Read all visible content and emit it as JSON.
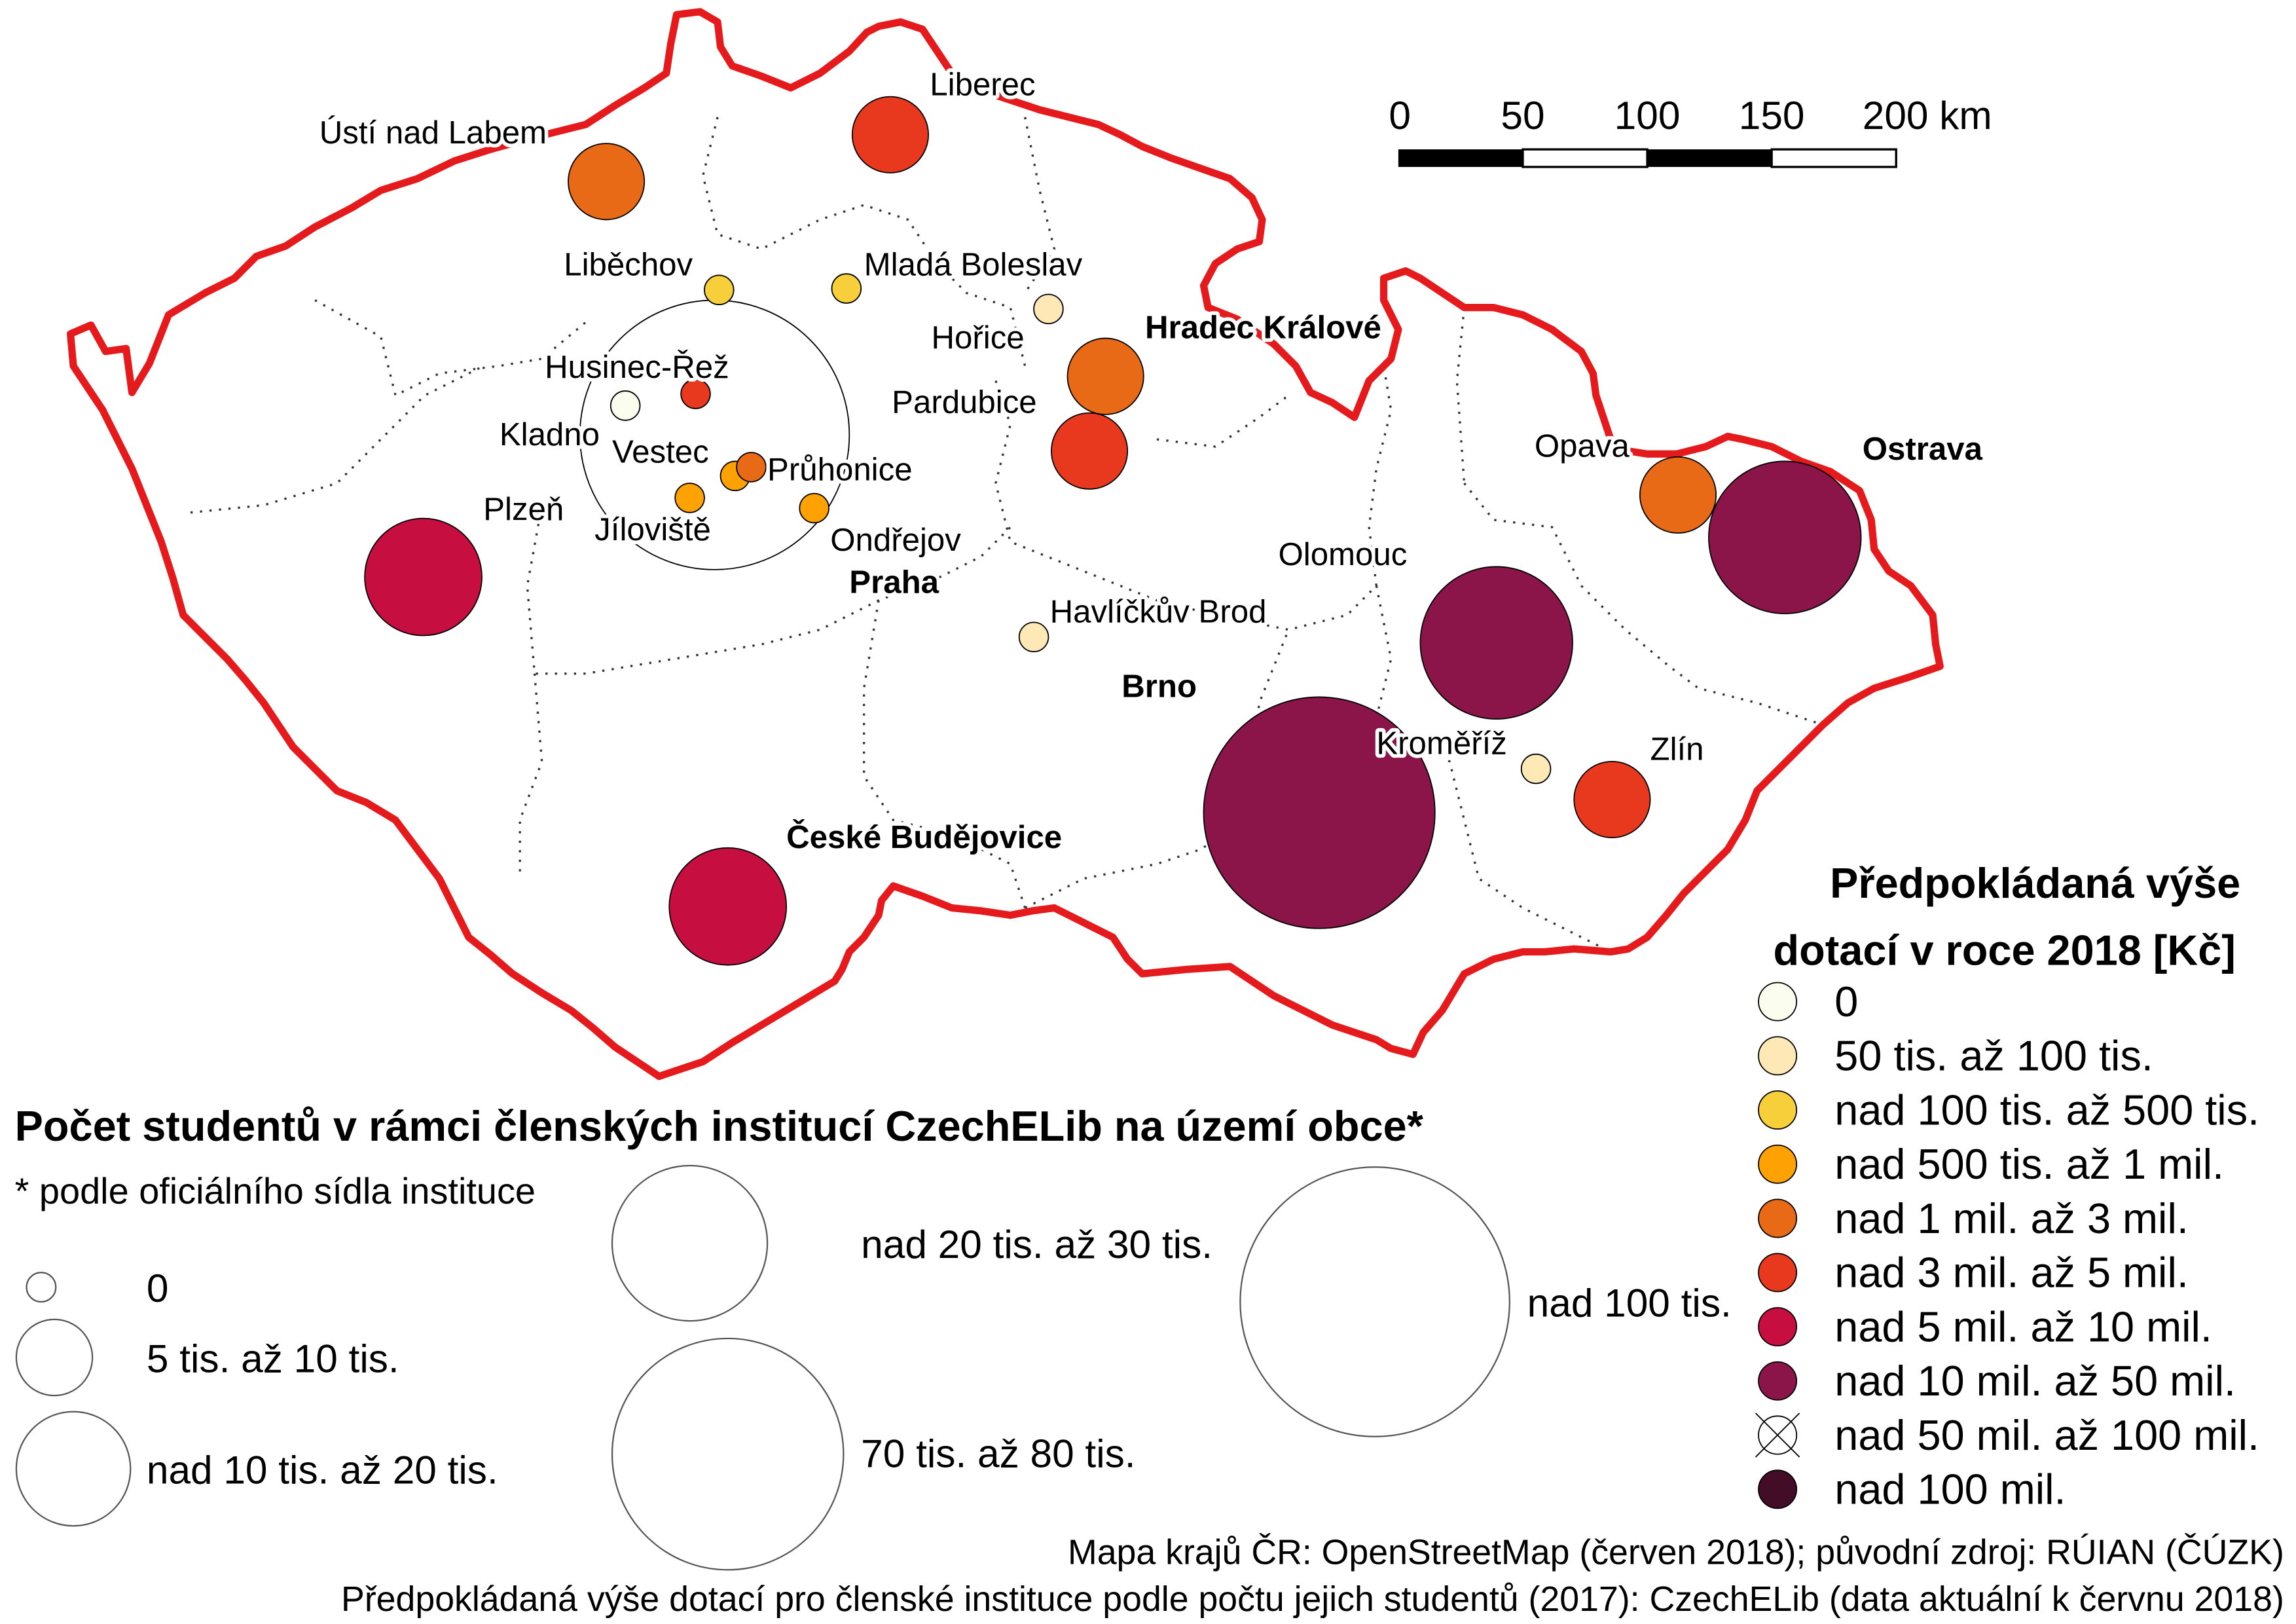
{
  "scale_bar": {
    "ticks": [
      "0",
      "50",
      "100",
      "150",
      "200 km"
    ]
  },
  "cities": [
    {
      "name": "Praha",
      "bold": true,
      "funding": 8
    },
    {
      "name": "Ústí nad Labem",
      "bold": false,
      "funding": 4
    },
    {
      "name": "Liberec",
      "bold": false,
      "funding": 5
    },
    {
      "name": "Liběchov",
      "bold": false,
      "funding": 2
    },
    {
      "name": "Mladá Boleslav",
      "bold": false,
      "funding": 2
    },
    {
      "name": "Hořice",
      "bold": false,
      "funding": 1
    },
    {
      "name": "Hradec Králové",
      "bold": true,
      "funding": 4
    },
    {
      "name": "Pardubice",
      "bold": false,
      "funding": 5
    },
    {
      "name": "Husinec-Řež",
      "bold": false,
      "funding": 5
    },
    {
      "name": "Kladno",
      "bold": false,
      "funding": 0
    },
    {
      "name": "Vestec",
      "bold": false,
      "funding": 3
    },
    {
      "name": "Průhonice",
      "bold": false,
      "funding": 4
    },
    {
      "name": "Jíloviště",
      "bold": false,
      "funding": 3
    },
    {
      "name": "Ondřejov",
      "bold": false,
      "funding": 3
    },
    {
      "name": "Plzeň",
      "bold": false,
      "funding": 6
    },
    {
      "name": "Havlíčkův Brod",
      "bold": false,
      "funding": 1
    },
    {
      "name": "Olomouc",
      "bold": false,
      "funding": 7
    },
    {
      "name": "Opava",
      "bold": false,
      "funding": 4
    },
    {
      "name": "Ostrava",
      "bold": true,
      "funding": 7
    },
    {
      "name": "Brno",
      "bold": true,
      "funding": 7
    },
    {
      "name": "Kroměříž",
      "bold": false,
      "funding": 1
    },
    {
      "name": "Zlín",
      "bold": false,
      "funding": 5
    },
    {
      "name": "České Budějovice",
      "bold": true,
      "funding": 6
    }
  ],
  "students_legend": {
    "title": "Počet studentů v rámci členských institucí CzechELib na území obce*",
    "note": "* podle oficiálního sídla instituce",
    "items": [
      "0",
      "5 tis. až 10 tis.",
      "nad 10 tis. až 20 tis.",
      "nad 20 tis. až 30 tis.",
      "70 tis. až 80 tis.",
      "nad 100 tis."
    ]
  },
  "funding_legend": {
    "title_line1": "Předpokládaná výše",
    "title_line2": "dotací v roce 2018 [Kč]",
    "items": [
      {
        "label": "0",
        "color": "#fbfdef"
      },
      {
        "label": "50 tis. až 100 tis.",
        "color": "#fde8b6"
      },
      {
        "label": "nad 100 tis. až 500 tis.",
        "color": "#f6cf3a"
      },
      {
        "label": "nad 500 tis. až 1 mil.",
        "color": "#fea203"
      },
      {
        "label": "nad 1 mil. až 3 mil.",
        "color": "#e86a16"
      },
      {
        "label": "nad 3 mil. až 5 mil.",
        "color": "#e8391f"
      },
      {
        "label": "nad 5 mil. až 10 mil.",
        "color": "#c70e40"
      },
      {
        "label": "nad 10 mil. až 50 mil.",
        "color": "#8b1549"
      },
      {
        "label": "nad 50 mil. až 100 mil.",
        "color": "none"
      },
      {
        "label": "nad 100 mil.",
        "color": "#430d27"
      }
    ]
  },
  "sources": {
    "line1": "Mapa krajů ČR: OpenStreetMap (červen 2018); původní zdroj: RÚIAN (ČÚZK)",
    "line2": "Předpokládaná výše dotací pro členské instituce podle počtu jejich studentů (2017): CzechELib (data aktuální k červnu 2018)"
  },
  "colors": {
    "border": "#e41a1c"
  }
}
